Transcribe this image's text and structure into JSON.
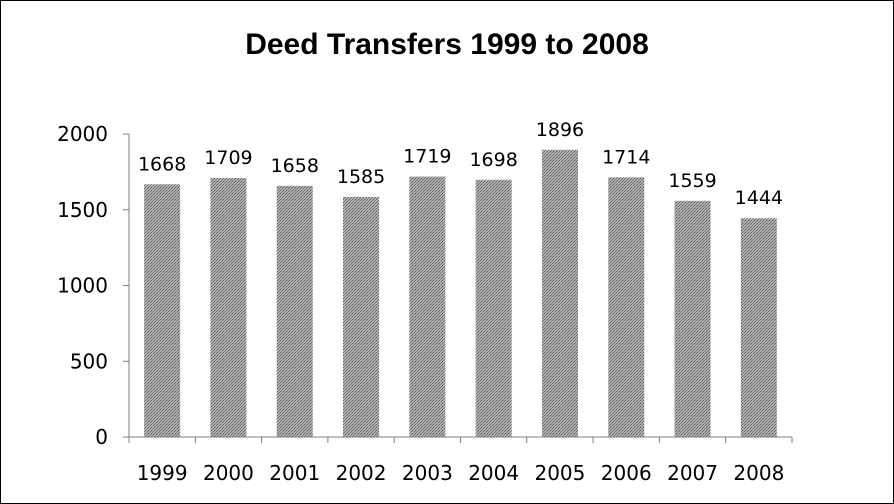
{
  "chart_data": {
    "type": "bar",
    "title": "Deed Transfers 1999 to 2008",
    "xlabel": "",
    "ylabel": "",
    "categories": [
      "1999",
      "2000",
      "2001",
      "2002",
      "2003",
      "2004",
      "2005",
      "2006",
      "2007",
      "2008"
    ],
    "values": [
      1668,
      1709,
      1658,
      1585,
      1719,
      1698,
      1896,
      1714,
      1559,
      1444
    ],
    "data_labels": [
      "1668",
      "1709",
      "1658",
      "1585",
      "1719",
      "1698",
      "1896",
      "1714",
      "1559",
      "1444"
    ],
    "ylim": [
      0,
      2000
    ],
    "yticks": [
      "0",
      "500",
      "1000",
      "1500",
      "2000"
    ],
    "grid": false,
    "legend": "none",
    "bar_color": "#9a9a9a",
    "bar_pattern": "dotted-gray"
  }
}
